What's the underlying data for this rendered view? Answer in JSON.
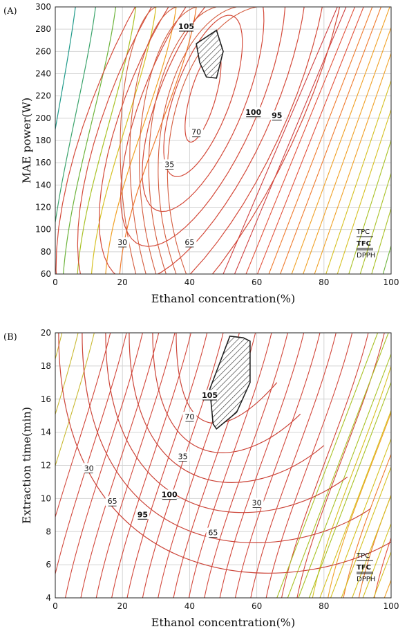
{
  "chart_data": [
    {
      "type": "contour",
      "panel_label": "(A)",
      "xlabel": "Ethanol concentration(%)",
      "ylabel": "MAE power(W)",
      "xlim": [
        0,
        100
      ],
      "ylim": [
        60,
        300
      ],
      "xticks": [
        "0",
        "20",
        "40",
        "60",
        "80",
        "100"
      ],
      "yticks": [
        "60",
        "80",
        "100",
        "120",
        "140",
        "160",
        "180",
        "200",
        "220",
        "240",
        "260",
        "280",
        "300"
      ],
      "legend": [
        "TPC",
        "TFC",
        "DPPH"
      ],
      "grid": true,
      "contour_labels": [
        {
          "text": "105",
          "x": 39,
          "y": 282,
          "bold": true
        },
        {
          "text": "100",
          "x": 59,
          "y": 205,
          "bold": true
        },
        {
          "text": "95",
          "x": 66,
          "y": 202,
          "bold": true
        },
        {
          "text": "70",
          "x": 42,
          "y": 187,
          "bold": false
        },
        {
          "text": "35",
          "x": 34,
          "y": 158,
          "bold": false
        },
        {
          "text": "65",
          "x": 40,
          "y": 88,
          "bold": false
        },
        {
          "text": "30",
          "x": 20,
          "y": 88,
          "bold": false
        }
      ],
      "optimal_region": [
        [
          42,
          267
        ],
        [
          48,
          279
        ],
        [
          50,
          260
        ],
        [
          48,
          236
        ],
        [
          45,
          237
        ],
        [
          43,
          250
        ]
      ]
    },
    {
      "type": "contour",
      "panel_label": "(B)",
      "xlabel": "Ethanol concentration(%)",
      "ylabel": "Extraction time(min)",
      "xlim": [
        0,
        100
      ],
      "ylim": [
        4,
        20
      ],
      "xticks": [
        "0",
        "20",
        "40",
        "60",
        "80",
        "100"
      ],
      "yticks": [
        "4",
        "6",
        "8",
        "10",
        "12",
        "14",
        "16",
        "18",
        "20"
      ],
      "legend": [
        "TPC",
        "TFC",
        "DPPH"
      ],
      "grid": true,
      "contour_labels": [
        {
          "text": "105",
          "x": 46,
          "y": 16.2,
          "bold": true
        },
        {
          "text": "70",
          "x": 40,
          "y": 14.9,
          "bold": false
        },
        {
          "text": "35",
          "x": 38,
          "y": 12.5,
          "bold": false
        },
        {
          "text": "30",
          "x": 10,
          "y": 11.8,
          "bold": false
        },
        {
          "text": "100",
          "x": 34,
          "y": 10.2,
          "bold": true
        },
        {
          "text": "65",
          "x": 17,
          "y": 9.8,
          "bold": false
        },
        {
          "text": "95",
          "x": 26,
          "y": 9.0,
          "bold": true
        },
        {
          "text": "30",
          "x": 60,
          "y": 9.7,
          "bold": false
        },
        {
          "text": "65",
          "x": 47,
          "y": 7.9,
          "bold": false
        }
      ],
      "optimal_region": [
        [
          47,
          14.5
        ],
        [
          46,
          16.6
        ],
        [
          52,
          19.8
        ],
        [
          56,
          19.7
        ],
        [
          58,
          19.5
        ],
        [
          58,
          17
        ],
        [
          54,
          15.2
        ],
        [
          48,
          14.2
        ]
      ]
    }
  ]
}
